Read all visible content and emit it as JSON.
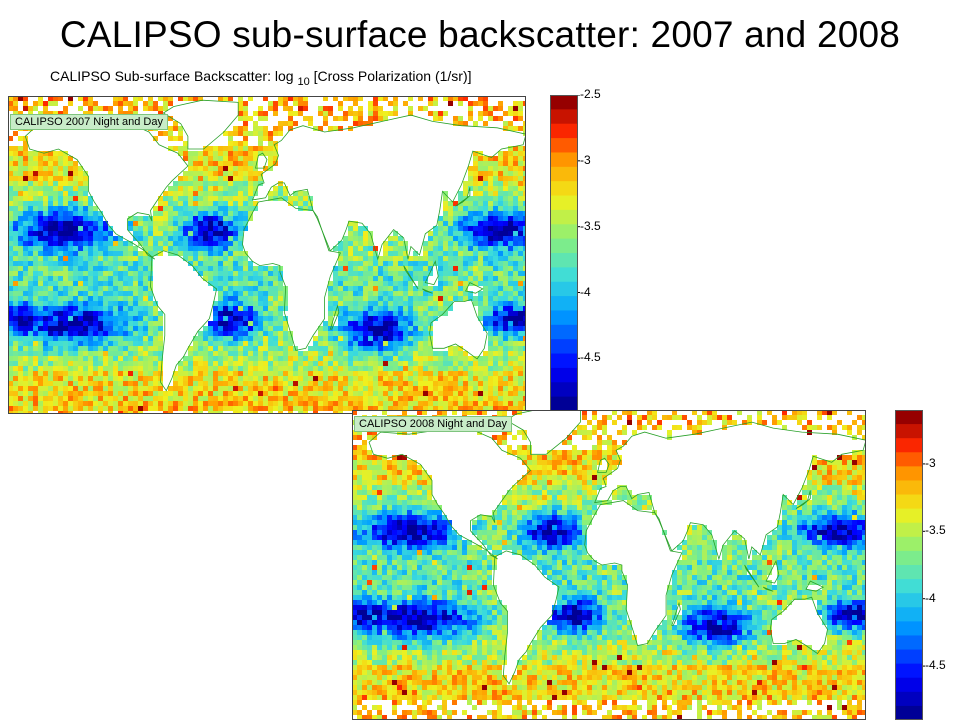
{
  "slide": {
    "title": "CALIPSO sub-surface backscatter: 2007 and 2008"
  },
  "figure": {
    "title_prefix": "CALIPSO Sub-surface Backscatter: log ",
    "title_sub": "10",
    "title_suffix": " [Cross Polarization (1/sr)]"
  },
  "chart_data": [
    {
      "type": "heatmap",
      "label": "CALIPSO 2007 Night and Day",
      "quantity": "log10 Cross Polarization (1/sr)",
      "colorbar": {
        "ticks": [
          "-2.5",
          "-3",
          "-3.5",
          "-4",
          "-4.5"
        ],
        "range": [
          -4.9,
          -2.5
        ]
      },
      "colors": {
        "low": "#0000a8",
        "mid": "#3cc8dc",
        "midhigh": "#f0f020",
        "high": "#a00000"
      }
    },
    {
      "type": "heatmap",
      "label": "CALIPSO 2008 Night and Day",
      "quantity": "log10 Cross Polarization (1/sr)",
      "colorbar": {
        "ticks": [
          "-3",
          "-3.5",
          "-4",
          "-4.5"
        ],
        "range": [
          -4.9,
          -2.6
        ]
      },
      "colors": {
        "low": "#0000a8",
        "mid": "#3cc8dc",
        "midhigh": "#f0f020",
        "high": "#a00000"
      }
    }
  ]
}
